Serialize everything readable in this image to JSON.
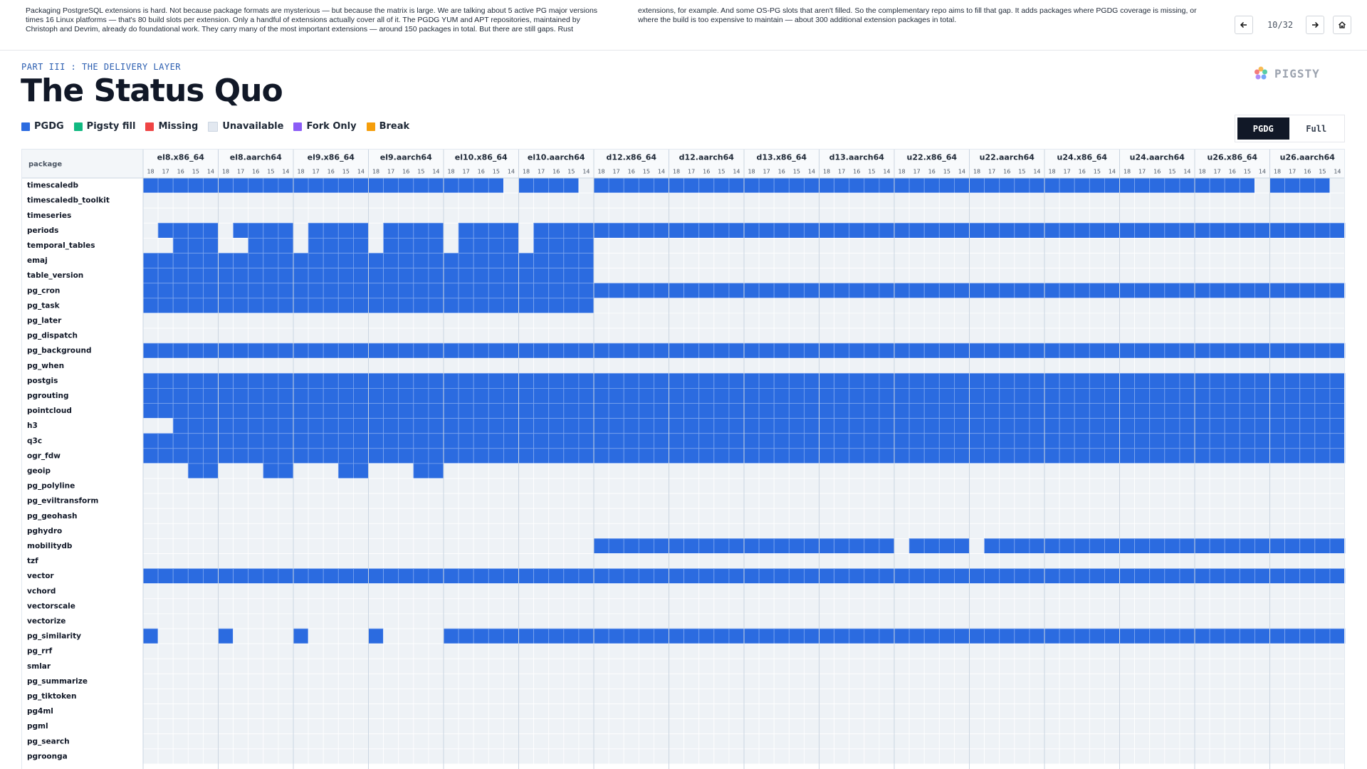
{
  "header": {
    "narration": "Packaging PostgreSQL extensions is hard. Not because package formats are mysterious — but because the matrix is large. We are talking about 5 active PG major versions times 16 Linux platforms — that's 80 build slots per extension. Only a handful of extensions actually cover all of it.    The PGDG YUM and APT repositories, maintained by Christoph and Devrim, already do foundational work. They carry many of the most important extensions — around 150 packages in total. But there are still gaps. Rust extensions, for example. And some OS-PG slots that aren't filled.    So the complementary repo aims to fill that gap. It adds packages where PGDG coverage is missing, or where the build is too expensive to maintain — about 300 additional extension packages in total.",
    "page_counter": "10/32"
  },
  "slide": {
    "kicker": "PART III : THE DELIVERY LAYER",
    "title": "The Status Quo",
    "logo": "PIGSTY",
    "legend": [
      {
        "label": "PGDG",
        "color": "#2b6be0"
      },
      {
        "label": "Pigsty fill",
        "color": "#10b981"
      },
      {
        "label": "Missing",
        "color": "#ef4444"
      },
      {
        "label": "Unavailable",
        "color": "#e2e8f0"
      },
      {
        "label": "Fork Only",
        "color": "#8b5cf6"
      },
      {
        "label": "Break",
        "color": "#f59e0b"
      }
    ],
    "toggle": [
      "PGDG",
      "Full"
    ]
  },
  "table": {
    "package_header": "package",
    "platforms": [
      "el8.x86_64",
      "el8.aarch64",
      "el9.x86_64",
      "el9.aarch64",
      "el10.x86_64",
      "el10.aarch64",
      "d12.x86_64",
      "d12.aarch64",
      "d13.x86_64",
      "d13.aarch64",
      "u22.x86_64",
      "u22.aarch64",
      "u24.x86_64",
      "u24.aarch64",
      "u26.x86_64",
      "u26.aarch64"
    ],
    "versions": [
      "18",
      "17",
      "16",
      "15",
      "14"
    ],
    "rows": [
      {
        "package": "timescaledb",
        "cells": "11111 11111 11111 11111 11110 11110 11111 11111 11111 11111 11111 11111 11111 11111 11110 11110"
      },
      {
        "package": "timescaledb_toolkit",
        "cells": "00000 00000 00000 00000 00000 00000 00000 00000 00000 00000 00000 00000 00000 00000 00000 00000"
      },
      {
        "package": "timeseries",
        "cells": "00000 00000 00000 00000 00000 00000 00000 00000 00000 00000 00000 00000 00000 00000 00000 00000"
      },
      {
        "package": "periods",
        "cells": "01111 01111 01111 01111 01111 01111 11111 11111 11111 11111 11111 11111 11111 11111 11111 11111"
      },
      {
        "package": "temporal_tables",
        "cells": "00111 00111 01111 01111 01111 01111 00000 00000 00000 00000 00000 00000 00000 00000 00000 00000"
      },
      {
        "package": "emaj",
        "cells": "11111 11111 11111 11111 11111 11111 00000 00000 00000 00000 00000 00000 00000 00000 00000 00000"
      },
      {
        "package": "table_version",
        "cells": "11111 11111 11111 11111 11111 11111 00000 00000 00000 00000 00000 00000 00000 00000 00000 00000"
      },
      {
        "package": "pg_cron",
        "cells": "11111 11111 11111 11111 11111 11111 11111 11111 11111 11111 11111 11111 11111 11111 11111 11111"
      },
      {
        "package": "pg_task",
        "cells": "11111 11111 11111 11111 11111 11111 00000 00000 00000 00000 00000 00000 00000 00000 00000 00000"
      },
      {
        "package": "pg_later",
        "cells": "00000 00000 00000 00000 00000 00000 00000 00000 00000 00000 00000 00000 00000 00000 00000 00000"
      },
      {
        "package": "pg_dispatch",
        "cells": "00000 00000 00000 00000 00000 00000 00000 00000 00000 00000 00000 00000 00000 00000 00000 00000"
      },
      {
        "package": "pg_background",
        "cells": "11111 11111 11111 11111 11111 11111 11111 11111 11111 11111 11111 11111 11111 11111 11111 11111"
      },
      {
        "package": "pg_when",
        "cells": "00000 00000 00000 00000 00000 00000 00000 00000 00000 00000 00000 00000 00000 00000 00000 00000"
      },
      {
        "package": "postgis",
        "cells": "11111 11111 11111 11111 11111 11111 11111 11111 11111 11111 11111 11111 11111 11111 11111 11111"
      },
      {
        "package": "pgrouting",
        "cells": "11111 11111 11111 11111 11111 11111 11111 11111 11111 11111 11111 11111 11111 11111 11111 11111"
      },
      {
        "package": "pointcloud",
        "cells": "11111 11111 11111 11111 11111 11111 11111 11111 11111 11111 11111 11111 11111 11111 11111 11111"
      },
      {
        "package": "h3",
        "cells": "00111 11111 11111 11111 11111 11111 11111 11111 11111 11111 11111 11111 11111 11111 11111 11111"
      },
      {
        "package": "q3c",
        "cells": "11111 11111 11111 11111 11111 11111 11111 11111 11111 11111 11111 11111 11111 11111 11111 11111"
      },
      {
        "package": "ogr_fdw",
        "cells": "11111 11111 11111 11111 11111 11111 11111 11111 11111 11111 11111 11111 11111 11111 11111 11111"
      },
      {
        "package": "geoip",
        "cells": "00011 00011 00011 00011 00000 00000 00000 00000 00000 00000 00000 00000 00000 00000 00000 00000"
      },
      {
        "package": "pg_polyline",
        "cells": "00000 00000 00000 00000 00000 00000 00000 00000 00000 00000 00000 00000 00000 00000 00000 00000"
      },
      {
        "package": "pg_eviltransform",
        "cells": "00000 00000 00000 00000 00000 00000 00000 00000 00000 00000 00000 00000 00000 00000 00000 00000"
      },
      {
        "package": "pg_geohash",
        "cells": "00000 00000 00000 00000 00000 00000 00000 00000 00000 00000 00000 00000 00000 00000 00000 00000"
      },
      {
        "package": "pghydro",
        "cells": "00000 00000 00000 00000 00000 00000 00000 00000 00000 00000 00000 00000 00000 00000 00000 00000"
      },
      {
        "package": "mobilitydb",
        "cells": "00000 00000 00000 00000 00000 00000 11111 11111 11111 11111 01111 01111 11111 11111 11111 11111"
      },
      {
        "package": "tzf",
        "cells": "00000 00000 00000 00000 00000 00000 00000 00000 00000 00000 00000 00000 00000 00000 00000 00000"
      },
      {
        "package": "vector",
        "cells": "11111 11111 11111 11111 11111 11111 11111 11111 11111 11111 11111 11111 11111 11111 11111 11111"
      },
      {
        "package": "vchord",
        "cells": "00000 00000 00000 00000 00000 00000 00000 00000 00000 00000 00000 00000 00000 00000 00000 00000"
      },
      {
        "package": "vectorscale",
        "cells": "00000 00000 00000 00000 00000 00000 00000 00000 00000 00000 00000 00000 00000 00000 00000 00000"
      },
      {
        "package": "vectorize",
        "cells": "00000 00000 00000 00000 00000 00000 00000 00000 00000 00000 00000 00000 00000 00000 00000 00000"
      },
      {
        "package": "pg_similarity",
        "cells": "10000 10000 10000 10000 11111 11111 11111 11111 11111 11111 11111 11111 11111 11111 11111 11111"
      },
      {
        "package": "pg_rrf",
        "cells": "00000 00000 00000 00000 00000 00000 00000 00000 00000 00000 00000 00000 00000 00000 00000 00000"
      },
      {
        "package": "smlar",
        "cells": "00000 00000 00000 00000 00000 00000 00000 00000 00000 00000 00000 00000 00000 00000 00000 00000"
      },
      {
        "package": "pg_summarize",
        "cells": "00000 00000 00000 00000 00000 00000 00000 00000 00000 00000 00000 00000 00000 00000 00000 00000"
      },
      {
        "package": "pg_tiktoken",
        "cells": "00000 00000 00000 00000 00000 00000 00000 00000 00000 00000 00000 00000 00000 00000 00000 00000"
      },
      {
        "package": "pg4ml",
        "cells": "00000 00000 00000 00000 00000 00000 00000 00000 00000 00000 00000 00000 00000 00000 00000 00000"
      },
      {
        "package": "pgml",
        "cells": "00000 00000 00000 00000 00000 00000 00000 00000 00000 00000 00000 00000 00000 00000 00000 00000"
      },
      {
        "package": "pg_search",
        "cells": "00000 00000 00000 00000 00000 00000 00000 00000 00000 00000 00000 00000 00000 00000 00000 00000"
      },
      {
        "package": "pgroonga",
        "cells": "00000 00000 00000 00000 00000 00000 00000 00000 00000 00000 00000 00000 00000 00000 00000 00000"
      }
    ]
  }
}
